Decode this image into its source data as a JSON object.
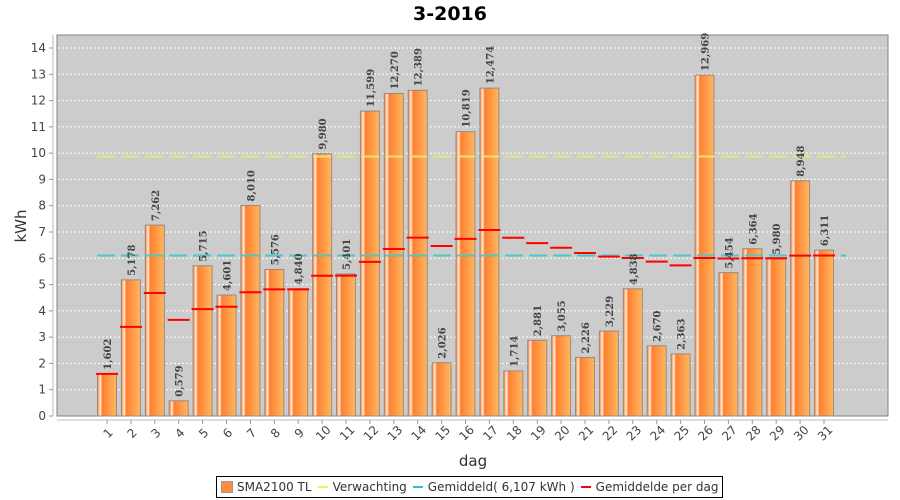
{
  "chart_data": {
    "type": "bar",
    "title": "3-2016",
    "xlabel": "dag",
    "ylabel": "kWh",
    "ylim": [
      0,
      14.5
    ],
    "yticks": [
      0,
      1,
      2,
      3,
      4,
      5,
      6,
      7,
      8,
      9,
      10,
      11,
      12,
      13,
      14
    ],
    "grid": true,
    "legend_position": "bottom",
    "categories": [
      "1",
      "2",
      "3",
      "4",
      "5",
      "6",
      "7",
      "8",
      "9",
      "10",
      "11",
      "12",
      "13",
      "14",
      "15",
      "16",
      "17",
      "18",
      "19",
      "20",
      "21",
      "22",
      "23",
      "24",
      "25",
      "26",
      "27",
      "28",
      "29",
      "30",
      "31"
    ],
    "series": [
      {
        "name": "SMA2100 TL",
        "kind": "bar",
        "color": "#ff8c3c",
        "values": [
          1.602,
          5.178,
          7.262,
          0.579,
          5.715,
          4.601,
          8.01,
          5.576,
          4.84,
          9.98,
          5.401,
          11.599,
          12.27,
          12.389,
          2.026,
          10.819,
          12.474,
          1.714,
          2.881,
          3.055,
          2.226,
          3.229,
          4.838,
          2.67,
          2.363,
          12.969,
          5.454,
          6.364,
          5.98,
          8.948,
          6.311
        ],
        "labels": [
          "1,602",
          "5,178",
          "7,262",
          "0,579",
          "5,715",
          "4,601",
          "8,010",
          "5,576",
          "4,840",
          "9,980",
          "5,401",
          "11,599",
          "12,270",
          "12,389",
          "2,026",
          "10,819",
          "12,474",
          "1,714",
          "2,881",
          "3,055",
          "2,226",
          "3,229",
          "4,838",
          "2,670",
          "2,363",
          "12,969",
          "5,454",
          "6,364",
          "5,980",
          "8,948",
          "6,311"
        ]
      },
      {
        "name": "Verwachting",
        "kind": "dashed-line",
        "color": "#e8e87a",
        "value": 9.87
      },
      {
        "name": "Gemiddeld( 6,107 kWh )",
        "kind": "dashed-line",
        "color": "#4cc4c4",
        "value": 6.107
      },
      {
        "name": "Gemiddelde per dag",
        "kind": "step-marker",
        "color": "#ff0000",
        "values": [
          1.602,
          3.39,
          4.681,
          3.655,
          4.067,
          4.156,
          4.707,
          4.815,
          4.818,
          5.334,
          5.34,
          5.862,
          6.355,
          6.786,
          6.469,
          6.74,
          7.078,
          6.78,
          6.575,
          6.399,
          6.2,
          6.065,
          6.011,
          5.872,
          5.732,
          6.01,
          5.99,
          6.003,
          6.002,
          6.1,
          6.107
        ]
      }
    ]
  },
  "legend": {
    "items": [
      {
        "label": "SMA2100 TL",
        "color": "#ff8c3c"
      },
      {
        "label": "Verwachting",
        "color": "#f0f060"
      },
      {
        "label": "Gemiddeld( 6,107 kWh )",
        "color": "#30c0c8"
      },
      {
        "label": "Gemiddelde per dag",
        "color": "#ff0000"
      }
    ]
  }
}
